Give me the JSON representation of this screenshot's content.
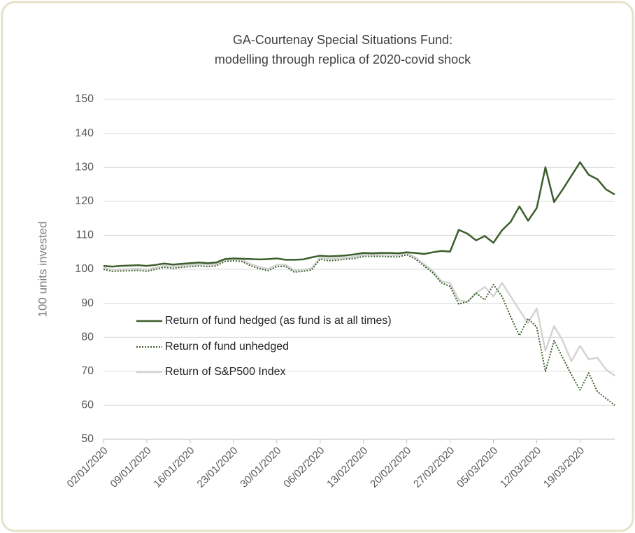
{
  "chart_data": {
    "type": "line",
    "title": [
      "GA-Courtenay Special Situations Fund:",
      "modelling through replica of 2020-covid shock"
    ],
    "y_label": "100 units invested",
    "categories": [
      "02/01/2020",
      null,
      null,
      null,
      null,
      "09/01/2020",
      null,
      null,
      null,
      null,
      "16/01/2020",
      null,
      null,
      null,
      null,
      "23/01/2020",
      null,
      null,
      null,
      null,
      "30/01/2020",
      null,
      null,
      null,
      null,
      "06/02/2020",
      null,
      null,
      null,
      null,
      "13/02/2020",
      null,
      null,
      null,
      null,
      "20/02/2020",
      null,
      null,
      null,
      null,
      "27/02/2020",
      null,
      null,
      null,
      null,
      "05/03/2020",
      null,
      null,
      null,
      null,
      "12/03/2020",
      null,
      null,
      null,
      null,
      "19/03/2020",
      null,
      null,
      null,
      null
    ],
    "ylim": [
      50,
      150
    ],
    "yticks": [
      50,
      60,
      70,
      80,
      90,
      100,
      110,
      120,
      130,
      140,
      150
    ],
    "grid": true,
    "legend": "inside-left",
    "series": [
      {
        "name": "Return of fund hedged (as fund is at all times)",
        "color": "#3b5e2b",
        "style": "solid",
        "values": [
          101,
          100.8,
          101,
          101.1,
          101.2,
          101,
          101.3,
          101.7,
          101.4,
          101.6,
          101.8,
          102,
          101.8,
          102,
          103,
          103.2,
          103.1,
          103,
          102.9,
          103,
          103.2,
          102.8,
          102.8,
          102.9,
          103.5,
          104,
          103.8,
          103.9,
          104.1,
          104.4,
          104.8,
          104.7,
          104.8,
          104.8,
          104.7,
          105,
          104.8,
          104.5,
          105,
          105.4,
          105.2,
          111.6,
          110.5,
          108.5,
          109.8,
          107.8,
          111.5,
          114,
          118.5,
          114.3,
          118,
          130,
          119.8,
          123.5,
          127.5,
          131.5,
          127.8,
          126.5,
          123.5,
          122
        ]
      },
      {
        "name": "Return of fund unhedged",
        "color": "#3b5e2b",
        "style": "dotted",
        "values": [
          100,
          99.4,
          99.5,
          99.6,
          99.7,
          99.4,
          100,
          100.6,
          100.3,
          100.6,
          100.8,
          101,
          100.8,
          101,
          102.3,
          102.5,
          102.3,
          101,
          100.2,
          99.6,
          100.8,
          100.9,
          99.2,
          99.4,
          99.8,
          103,
          102.5,
          102.7,
          103,
          103.2,
          103.8,
          103.8,
          103.8,
          103.7,
          103.6,
          104.3,
          103,
          101,
          99,
          96,
          95,
          89.8,
          90.5,
          93,
          91,
          95.5,
          92,
          86,
          80.5,
          85.5,
          83,
          70,
          79,
          74,
          69,
          64.5,
          69.5,
          64,
          62,
          60
        ]
      },
      {
        "name": "Return of S&P500 Index",
        "color": "#d4d4d4",
        "style": "solid",
        "values": [
          100.5,
          99.9,
          100,
          100.1,
          100.2,
          99.9,
          100.5,
          101.1,
          100.8,
          101.1,
          101.3,
          101.5,
          101.3,
          101.5,
          102.8,
          103,
          102.8,
          101.5,
          100.7,
          100.1,
          101.3,
          101.4,
          99.7,
          99.9,
          100.3,
          103.5,
          103,
          103.2,
          103.5,
          103.7,
          104.3,
          104.3,
          104.3,
          104.2,
          104.1,
          104.8,
          103.5,
          101.5,
          99.5,
          96.5,
          96,
          91,
          90.3,
          93,
          94.8,
          92,
          96,
          92,
          88,
          84.2,
          88.5,
          76,
          83.3,
          79,
          73,
          77.5,
          73.5,
          74,
          70.5,
          68.7
        ]
      }
    ]
  }
}
